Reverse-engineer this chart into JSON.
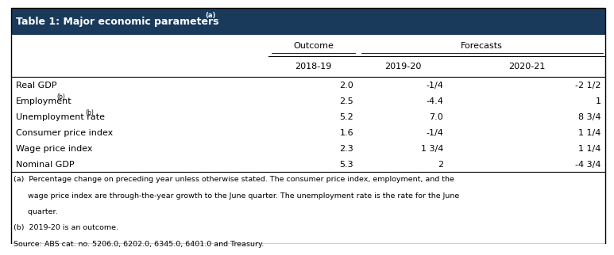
{
  "title": "Table 1: Major economic parameters",
  "title_superscript": "(a)",
  "header_bg_color": "#1a3a5c",
  "header_text_color": "#ffffff",
  "table_bg_color": "#ffffff",
  "border_color": "#000000",
  "col_header_1": "Outcome",
  "col_header_2": "Forecasts",
  "col_subheader_1": "2018-19",
  "col_subheader_2": "2019-20",
  "col_subheader_3": "2020-21",
  "rows": [
    [
      "Real GDP",
      "2.0",
      "-1/4",
      "-2 1/2"
    ],
    [
      "Employment",
      "2.5",
      "-4.4",
      "1"
    ],
    [
      "Unemployment rate",
      "5.2",
      "7.0",
      "8 3/4"
    ],
    [
      "Consumer price index",
      "1.6",
      "-1/4",
      "1 1/4"
    ],
    [
      "Wage price index",
      "2.3",
      "1 3/4",
      "1 1/4"
    ],
    [
      "Nominal GDP",
      "5.3",
      "2",
      "-4 3/4"
    ]
  ],
  "row_labels_with_superscript": [
    false,
    true,
    true,
    false,
    false,
    false
  ],
  "footnote_a_line1": "(a)  Percentage change on preceding year unless otherwise stated. The consumer price index, employment, and the",
  "footnote_a_line2": "      wage price index are through-the-year growth to the June quarter. The unemployment rate is the rate for the June",
  "footnote_a_line3": "      quarter.",
  "footnote_b": "(b)  2019-20 is an outcome.",
  "footnote_source": "Source: ABS cat. no. 5206.0, 6202.0, 6345.0, 6401.0 and Treasury.",
  "fig_width": 7.54,
  "fig_height": 2.99
}
